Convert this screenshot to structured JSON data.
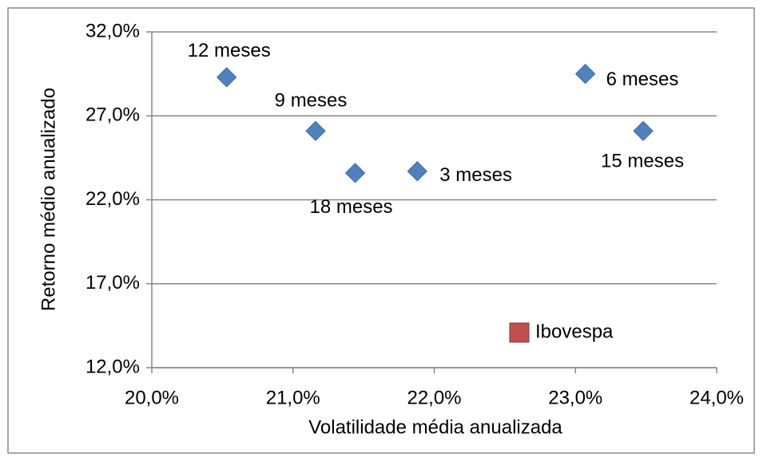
{
  "chart_data": {
    "type": "scatter",
    "x_label": "Volatilidade média anualizada",
    "y_label": "Retorno médio anualizado",
    "xlim": [
      20,
      24
    ],
    "ylim": [
      12,
      32
    ],
    "xticks": [
      {
        "value": 20,
        "label": "20,0%"
      },
      {
        "value": 21,
        "label": "21,0%"
      },
      {
        "value": 22,
        "label": "22,0%"
      },
      {
        "value": 23,
        "label": "23,0%"
      },
      {
        "value": 24,
        "label": "24,0%"
      }
    ],
    "yticks": [
      {
        "value": 12,
        "label": "12,0%"
      },
      {
        "value": 17,
        "label": "17,0%"
      },
      {
        "value": 22,
        "label": "22,0%"
      },
      {
        "value": 27,
        "label": "27,0%"
      },
      {
        "value": 32,
        "label": "32,0%"
      }
    ],
    "grid": true,
    "series": [
      {
        "color": "#4f81bd",
        "x": [
          20.53,
          21.16,
          21.44,
          21.88,
          23.07,
          23.48
        ],
        "values": [
          29.3,
          26.1,
          23.6,
          23.7,
          29.5,
          26.1
        ],
        "labels": [
          "12 meses",
          "9 meses",
          "18 meses",
          "3 meses",
          "6 meses",
          "15 meses"
        ]
      },
      {
        "name": "Ibovespa",
        "color": "#c0504d",
        "x": [],
        "values": []
      }
    ]
  }
}
